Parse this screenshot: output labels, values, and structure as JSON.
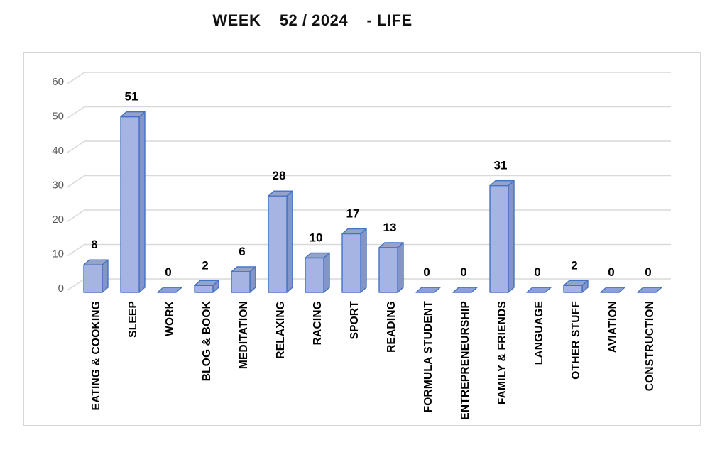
{
  "chart_data": {
    "type": "bar",
    "style": "3d-column",
    "title": "WEEK    52 / 2024    - LIFE",
    "categories": [
      "EATING & COOKING",
      "SLEEP",
      "WORK",
      "BLOG & BOOK",
      "MEDITATION",
      "RELAXING",
      "RACING",
      "SPORT",
      "READING",
      "FORMULA STUDENT",
      "ENTREPRENEURSHIP",
      "FAMILY & FRIENDS",
      "LANGUAGE",
      "OTHER STUFF",
      "AVIATION",
      "CONSTRUCTION"
    ],
    "values": [
      8,
      51,
      0,
      2,
      6,
      28,
      10,
      17,
      13,
      0,
      0,
      31,
      0,
      2,
      0,
      0
    ],
    "data_labels": [
      "8",
      "51",
      "0",
      "2",
      "6",
      "28",
      "10",
      "17",
      "13",
      "0",
      "0",
      "31",
      "0",
      "2",
      "0",
      "0"
    ],
    "xlabel": "",
    "ylabel": "",
    "ylim": [
      0,
      60
    ],
    "yticks": [
      0,
      10,
      20,
      30,
      40,
      50,
      60
    ],
    "grid": true,
    "legend": "none",
    "colors": {
      "bar_front": "#a6b4e3",
      "bar_top": "#96a3c8",
      "bar_side": "#8595c6",
      "bar_zero_fill": "#8da0d4",
      "bar_border": "#4472c4",
      "gridline": "#d9d9d9",
      "tick_label": "#595959",
      "data_label": "#000000",
      "category_label": "#000000",
      "title_color": "#111111",
      "frame_border": "#d6d6d6",
      "background": "#ffffff"
    }
  }
}
